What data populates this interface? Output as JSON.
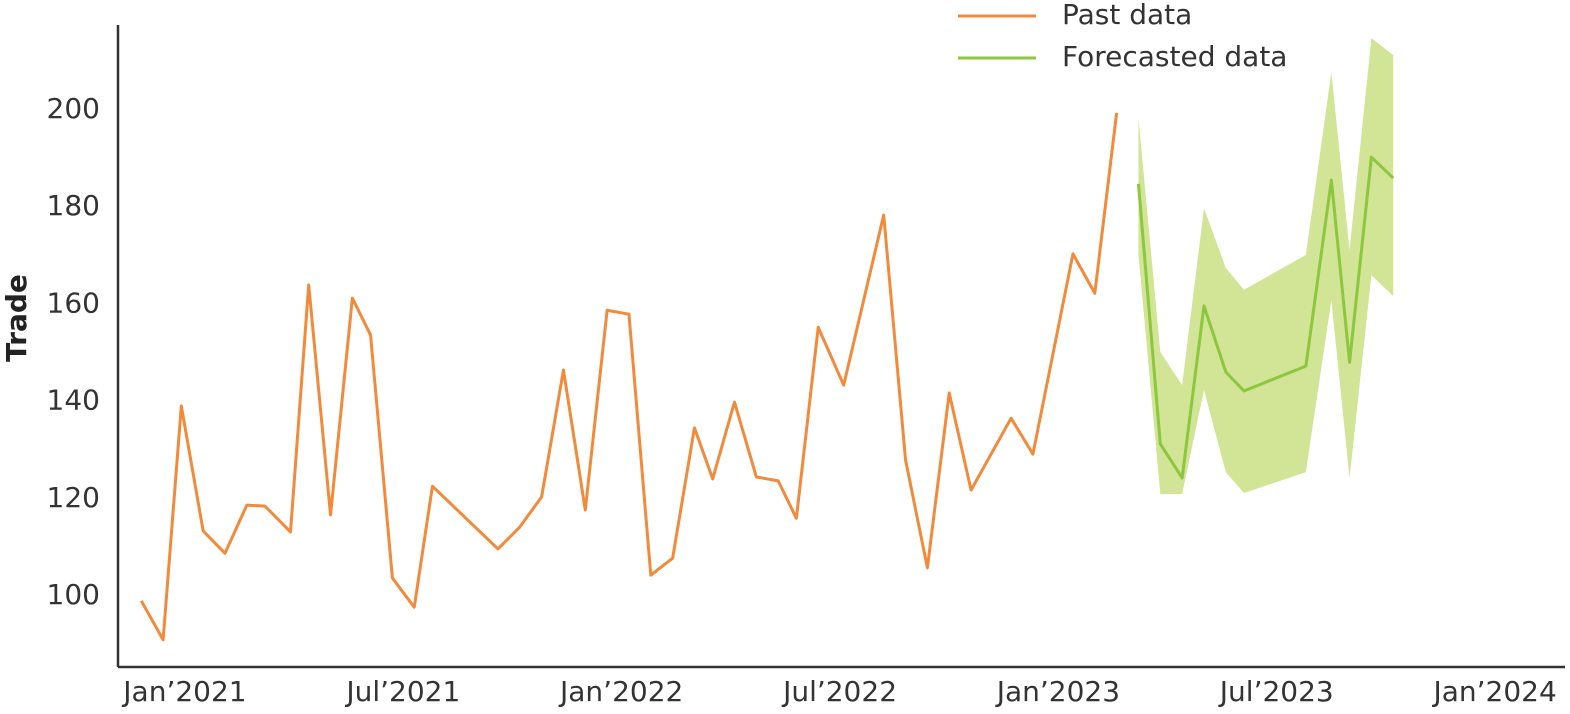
{
  "chart_data": {
    "type": "line",
    "y_label": "Trade",
    "xlim": [
      -1.84,
      37.92
    ],
    "xticks": [
      {
        "value": 0,
        "label": "Jan’2021"
      },
      {
        "value": 6,
        "label": "Jul’2021"
      },
      {
        "value": 12,
        "label": "Jan’2022"
      },
      {
        "value": 18,
        "label": "Jul’2022"
      },
      {
        "value": 24,
        "label": "Jan’2023"
      },
      {
        "value": 30,
        "label": "Jul’2023"
      },
      {
        "value": 36,
        "label": "Jan’2024"
      }
    ],
    "ylim": [
      85.4,
      217.5
    ],
    "yticks": [
      100,
      120,
      140,
      160,
      180,
      200
    ],
    "legend": "top-right",
    "series": [
      {
        "name": "Past data",
        "color": "#f28a3c",
        "x": [
          -1.2,
          -0.6,
          -0.1,
          0.5,
          1.1,
          1.7,
          2.2,
          2.9,
          3.4,
          4.0,
          4.6,
          5.1,
          5.7,
          6.3,
          6.8,
          8.6,
          9.2,
          9.8,
          10.4,
          11.0,
          11.6,
          12.2,
          12.8,
          13.4,
          14.0,
          14.5,
          15.1,
          15.7,
          16.3,
          16.8,
          17.4,
          18.1,
          19.2,
          19.8,
          20.4,
          21.0,
          21.6,
          22.7,
          23.3,
          24.4,
          25.0,
          25.6
        ],
        "values": [
          99.0,
          91.0,
          139.1,
          113.4,
          108.8,
          118.7,
          118.5,
          113.2,
          164.0,
          116.7,
          161.3,
          153.7,
          103.7,
          97.7,
          122.6,
          109.7,
          114.2,
          120.4,
          146.5,
          117.7,
          158.8,
          158.0,
          104.3,
          107.8,
          134.6,
          124.1,
          139.9,
          124.5,
          123.7,
          116.0,
          155.3,
          143.4,
          178.4,
          128.0,
          105.8,
          141.8,
          121.8,
          136.6,
          129.2,
          170.4,
          162.3,
          199.4
        ]
      },
      {
        "name": "Forecasted data",
        "color": "#8dc63f",
        "band_color": "#d2e495",
        "x": [
          26.2,
          26.8,
          27.4,
          28.0,
          28.6,
          29.1,
          30.8,
          31.5,
          32.0,
          32.6,
          33.2
        ],
        "values": [
          184.8,
          131.3,
          124.3,
          159.7,
          146.1,
          142.2,
          147.3,
          185.6,
          148.1,
          190.3,
          186.0
        ],
        "upper": [
          198.4,
          150.2,
          143.4,
          179.8,
          167.5,
          163.0,
          170.2,
          207.8,
          171.2,
          214.8,
          211.3
        ],
        "lower": [
          170.2,
          121.0,
          121.0,
          142.4,
          125.5,
          121.2,
          125.5,
          160.9,
          124.3,
          166.0,
          161.7
        ]
      }
    ]
  }
}
